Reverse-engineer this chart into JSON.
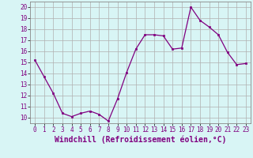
{
  "x": [
    0,
    1,
    2,
    3,
    4,
    5,
    6,
    7,
    8,
    9,
    10,
    11,
    12,
    13,
    14,
    15,
    16,
    17,
    18,
    19,
    20,
    21,
    22,
    23
  ],
  "y": [
    15.2,
    13.7,
    12.2,
    10.4,
    10.1,
    10.4,
    10.6,
    10.3,
    9.7,
    11.7,
    14.1,
    16.2,
    17.5,
    17.5,
    17.4,
    16.2,
    16.3,
    20.0,
    18.8,
    18.2,
    17.5,
    15.9,
    14.8,
    14.9
  ],
  "line_color": "#800080",
  "marker": "s",
  "marker_size": 2.0,
  "bg_color": "#d8f5f5",
  "grid_color": "#b0b0b0",
  "xlabel": "Windchill (Refroidissement éolien,°C)",
  "xlabel_fontsize": 7.0,
  "ytick_labels": [
    "10",
    "11",
    "12",
    "13",
    "14",
    "15",
    "16",
    "17",
    "18",
    "19",
    "20"
  ],
  "ytick_vals": [
    10,
    11,
    12,
    13,
    14,
    15,
    16,
    17,
    18,
    19,
    20
  ],
  "xtick_vals": [
    0,
    1,
    2,
    3,
    4,
    5,
    6,
    7,
    8,
    9,
    10,
    11,
    12,
    13,
    14,
    15,
    16,
    17,
    18,
    19,
    20,
    21,
    22,
    23
  ],
  "ylim": [
    9.5,
    20.5
  ],
  "xlim": [
    -0.5,
    23.5
  ],
  "tick_fontsize": 5.5,
  "linewidth": 0.9
}
